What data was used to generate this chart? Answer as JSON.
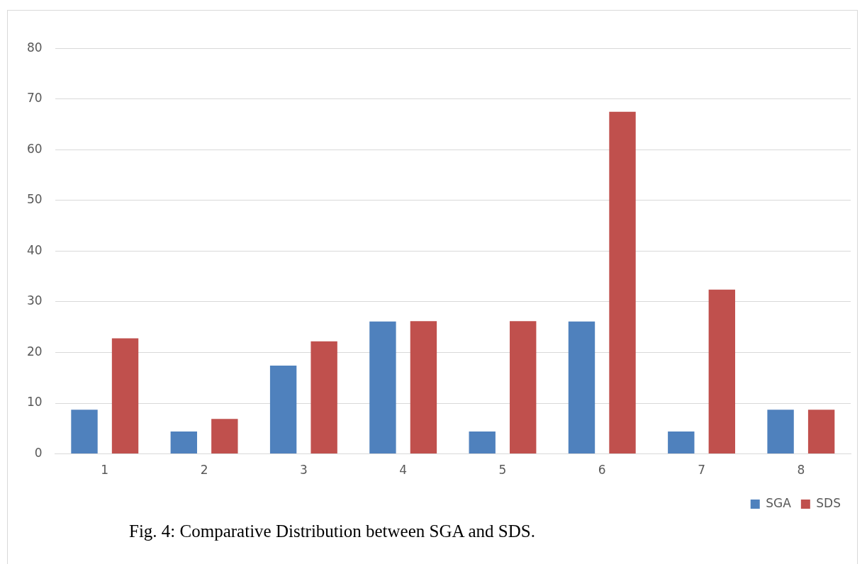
{
  "chart_data": {
    "type": "bar",
    "categories": [
      "1",
      "2",
      "3",
      "4",
      "5",
      "6",
      "7",
      "8"
    ],
    "series": [
      {
        "name": "SGA",
        "color": "#4f81bd",
        "values": [
          8.7,
          4.4,
          17.4,
          26.1,
          4.4,
          26.1,
          4.4,
          8.7
        ]
      },
      {
        "name": "SDS",
        "color": "#c0504d",
        "values": [
          22.8,
          6.9,
          22.2,
          26.2,
          26.2,
          67.5,
          32.4,
          8.7
        ]
      }
    ],
    "ylim": [
      0,
      80
    ],
    "yticks": [
      0,
      10,
      20,
      30,
      40,
      50,
      60,
      70,
      80
    ],
    "grid": "y",
    "legend": "bottom right",
    "annotations": [
      "Fig. 4: Comparative Distribution between SGA and SDS."
    ]
  }
}
